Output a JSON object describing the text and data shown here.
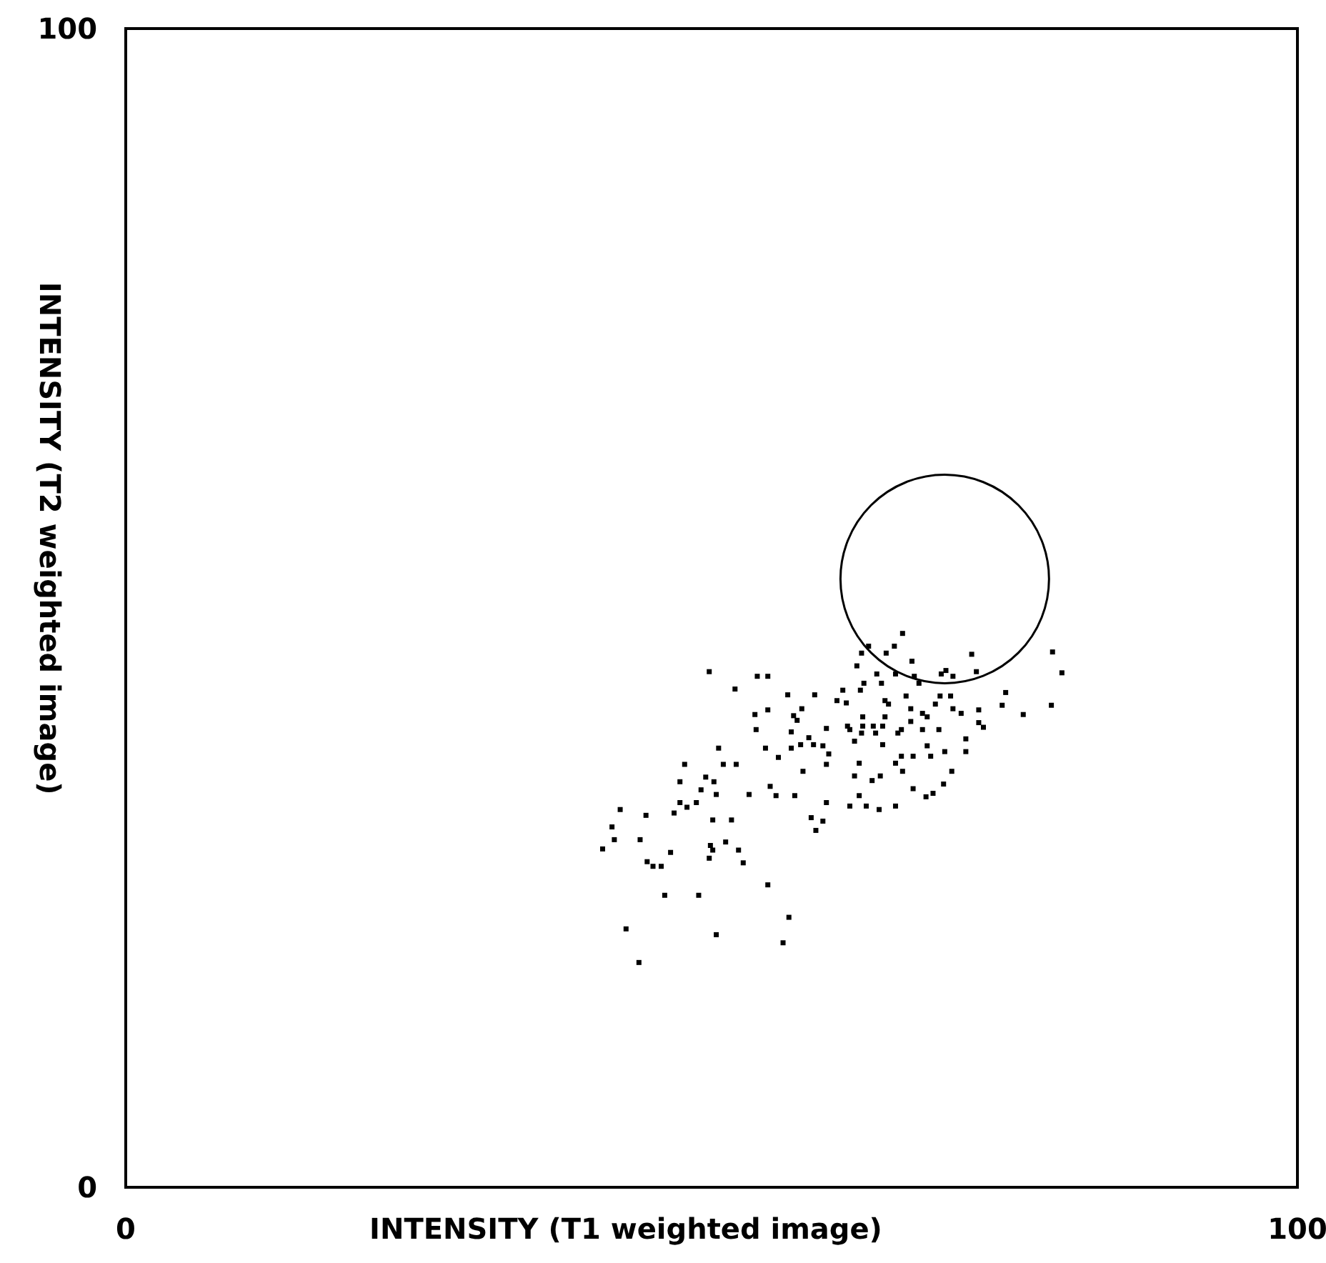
{
  "chart_data": {
    "type": "scatter",
    "xlabel": "INTENSITY  (T1 weighted image)",
    "ylabel": "INTENSITY  (T2 weighted image)",
    "xlim": [
      0,
      100
    ],
    "ylim": [
      0,
      100
    ],
    "xticks": [
      0,
      100
    ],
    "yticks": [
      0,
      100
    ],
    "marker": "square",
    "series": [
      {
        "color": "#000000",
        "x": [
          49.8,
          53.9,
          54.8,
          52.0,
          56.5,
          58.8,
          57.7,
          53.7,
          54.8,
          57.0,
          57.3,
          53.8,
          56.8,
          59.8,
          58.3,
          50.6,
          54.6,
          56.8,
          57.6,
          58.7,
          59.5,
          55.7,
          60.0,
          47.7,
          51.0,
          52.1,
          59.8,
          57.8,
          49.5,
          47.3,
          50.2,
          55.0,
          49.1,
          50.4,
          53.2,
          55.5,
          57.1,
          47.3,
          48.7,
          47.9,
          46.8,
          59.8,
          42.2,
          44.4,
          50.1,
          51.7,
          58.5,
          59.5,
          41.5,
          58.9,
          41.7,
          43.9,
          51.2,
          40.7,
          49.9,
          50.1,
          52.3,
          46.5,
          49.8,
          44.5,
          45.7,
          45.0,
          52.7,
          54.8,
          46.0,
          48.9,
          56.6,
          42.7,
          50.4,
          56.1,
          43.8,
          66.3,
          63.4,
          65.6,
          62.8,
          64.9,
          67.1,
          72.2,
          79.1,
          79.9,
          62.4,
          64.1,
          65.7,
          67.3,
          69.6,
          70.0,
          70.6,
          72.6,
          63.0,
          64.5,
          67.7,
          61.2,
          62.7,
          66.6,
          69.5,
          70.4,
          75.1,
          60.7,
          61.5,
          64.8,
          65.1,
          69.1,
          74.8,
          79.0,
          67.0,
          70.6,
          72.8,
          68.0,
          71.3,
          76.6,
          62.9,
          64.8,
          68.4,
          67.0,
          72.8,
          61.6,
          62.9,
          63.8,
          64.6,
          66.2,
          68.0,
          69.4,
          73.2,
          61.8,
          62.8,
          64.0,
          65.9,
          64.6,
          62.2,
          68.4,
          71.7,
          66.2,
          67.2,
          68.7,
          69.9,
          71.7,
          62.6,
          65.7,
          66.3,
          70.5,
          62.2,
          63.7,
          64.4,
          67.2,
          69.8,
          62.6,
          68.9,
          68.3,
          61.8,
          63.2,
          64.3,
          65.7
        ],
        "values": [
          44.5,
          44.1,
          44.1,
          43.0,
          42.5,
          42.5,
          41.3,
          40.8,
          41.2,
          40.7,
          40.3,
          39.5,
          39.3,
          39.6,
          38.8,
          37.9,
          37.9,
          37.9,
          38.2,
          38.2,
          38.1,
          37.1,
          37.4,
          36.5,
          36.5,
          36.5,
          36.5,
          35.9,
          35.4,
          35.0,
          35.0,
          34.6,
          34.3,
          33.9,
          33.9,
          33.8,
          33.8,
          33.2,
          33.2,
          32.8,
          32.3,
          33.2,
          32.6,
          32.1,
          31.7,
          31.7,
          31.9,
          31.6,
          31.1,
          30.8,
          30.0,
          30.0,
          29.8,
          29.2,
          29.5,
          29.1,
          29.1,
          28.9,
          28.4,
          28.1,
          27.7,
          27.7,
          28.0,
          26.1,
          25.2,
          25.2,
          23.3,
          22.3,
          21.8,
          21.1,
          19.4,
          47.8,
          46.7,
          46.7,
          46.1,
          46.1,
          45.4,
          46.0,
          46.2,
          44.4,
          45.0,
          44.3,
          44.3,
          44.1,
          44.3,
          44.6,
          44.1,
          44.5,
          43.5,
          43.5,
          43.5,
          42.9,
          42.9,
          42.4,
          42.4,
          42.4,
          42.7,
          42.0,
          41.8,
          42.0,
          41.7,
          41.7,
          41.6,
          41.6,
          41.3,
          41.3,
          41.2,
          40.9,
          40.9,
          40.8,
          40.6,
          40.6,
          40.6,
          40.2,
          40.1,
          39.8,
          39.8,
          39.8,
          39.8,
          39.5,
          39.5,
          39.5,
          39.7,
          39.5,
          39.2,
          39.2,
          39.2,
          38.2,
          38.5,
          38.1,
          38.7,
          37.2,
          37.2,
          37.2,
          37.6,
          37.6,
          36.6,
          36.6,
          35.9,
          35.9,
          35.5,
          35.1,
          35.5,
          34.4,
          34.8,
          33.8,
          34.0,
          33.7,
          32.9,
          32.9,
          32.6,
          32.9
        ]
      }
    ]
  }
}
